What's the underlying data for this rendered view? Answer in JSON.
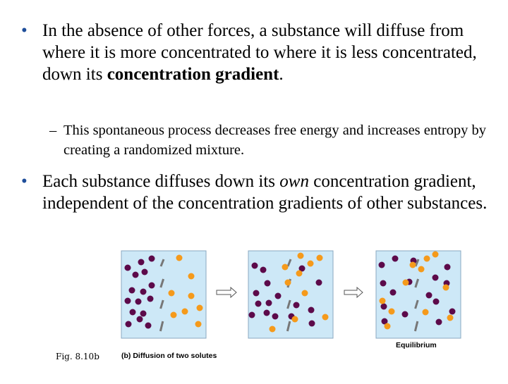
{
  "bullets": [
    {
      "dot": "•",
      "text_before": "In the absence of other forces, a substance will diffuse from where it is more concentrated to where it is less concentrated, down its ",
      "bold": "concentration gradient",
      "text_after": "."
    },
    {
      "dot": "•",
      "text_before": "Each substance diffuses down its ",
      "italic": "own",
      "text_after": " concentration gradient, independent of the concentration gradients of other substances."
    }
  ],
  "sub_bullet": {
    "dash": "–",
    "text": "This spontaneous process decreases free energy and increases entropy by creating a randomized mixture."
  },
  "figure": {
    "fig_label": "Fig. 8.10b",
    "caption": "(b) Diffusion of two solutes",
    "equilibrium_label": "Equilibrium",
    "colors": {
      "box_fill": "#cde8f7",
      "box_stroke": "#8aa8c0",
      "membrane": "#777777",
      "purple_solute": "#5c0a4a",
      "orange_solute": "#f59a1b",
      "bullet_dot": "#1f4e9a"
    }
  }
}
